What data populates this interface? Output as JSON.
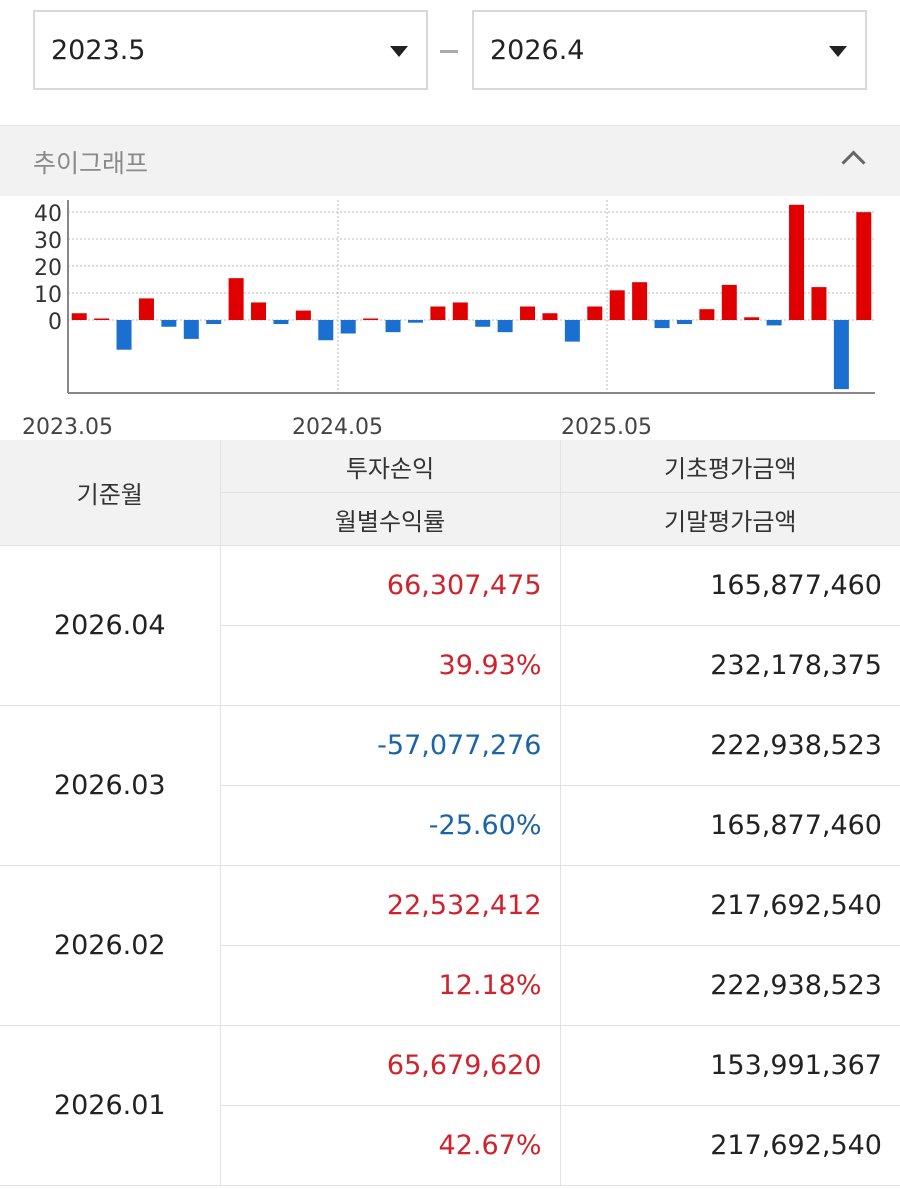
{
  "date_range": {
    "start": "2023.5",
    "separator": "–",
    "end": "2026.4"
  },
  "section": {
    "title": "추이그래프"
  },
  "colors": {
    "positive": "#e00000",
    "negative": "#1a6fd0",
    "positive_text": "#d0222c",
    "negative_text": "#1b64a6"
  },
  "chart_data": {
    "type": "bar",
    "categories": [
      "2023.05",
      "2023.06",
      "2023.07",
      "2023.08",
      "2023.09",
      "2023.10",
      "2023.11",
      "2023.12",
      "2024.01",
      "2024.02",
      "2024.03",
      "2024.04",
      "2024.05",
      "2024.06",
      "2024.07",
      "2024.08",
      "2024.09",
      "2024.10",
      "2024.11",
      "2024.12",
      "2025.01",
      "2025.02",
      "2025.03",
      "2025.04",
      "2025.05",
      "2025.06",
      "2025.07",
      "2025.08",
      "2025.09",
      "2025.10",
      "2025.11",
      "2025.12",
      "2026.01",
      "2026.02",
      "2026.03",
      "2026.04"
    ],
    "values": [
      2.5,
      0,
      -11,
      8,
      -2.5,
      -7,
      -1.5,
      15.5,
      6.5,
      -1.5,
      3.5,
      -7.5,
      -5,
      0.5,
      -4.5,
      -1,
      5,
      6.5,
      -2.5,
      -4.5,
      5,
      2.5,
      -8,
      5,
      11,
      14,
      -3,
      -1.5,
      4,
      13,
      1,
      -2,
      42.67,
      12.18,
      -25.6,
      39.93
    ],
    "y_ticks": [
      "0",
      "10",
      "20",
      "30",
      "40"
    ],
    "ylim": [
      -25.6,
      42.67
    ],
    "x_tick_labels": [
      "2023.05",
      "2024.05",
      "2025.05"
    ],
    "grid": true,
    "legend": "none"
  },
  "table": {
    "headers": {
      "month": "기준월",
      "profit": "투자손익",
      "rate": "월별수익률",
      "begin": "기초평가금액",
      "end": "기말평가금액"
    },
    "rows": [
      {
        "month": "2026.04",
        "profit": "66,307,475",
        "rate": "39.93%",
        "begin": "165,877,460",
        "end": "232,178,375",
        "sign": "pos"
      },
      {
        "month": "2026.03",
        "profit": "-57,077,276",
        "rate": "-25.60%",
        "begin": "222,938,523",
        "end": "165,877,460",
        "sign": "neg"
      },
      {
        "month": "2026.02",
        "profit": "22,532,412",
        "rate": "12.18%",
        "begin": "217,692,540",
        "end": "222,938,523",
        "sign": "pos"
      },
      {
        "month": "2026.01",
        "profit": "65,679,620",
        "rate": "42.67%",
        "begin": "153,991,367",
        "end": "217,692,540",
        "sign": "pos"
      }
    ]
  }
}
